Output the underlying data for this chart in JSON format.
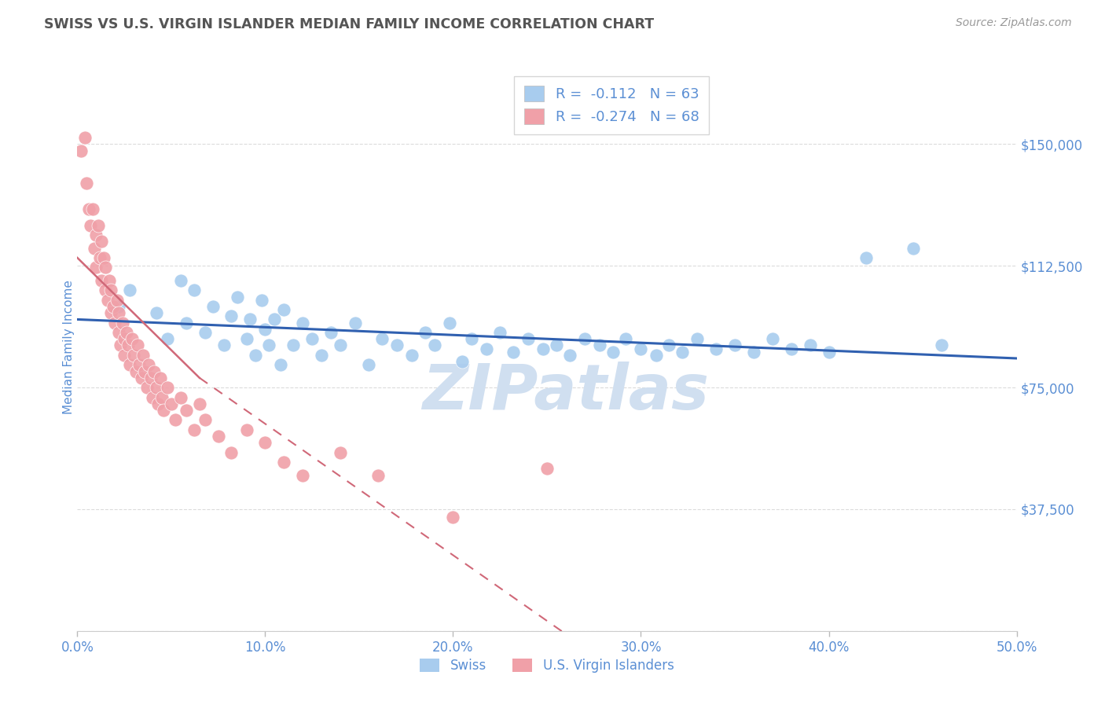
{
  "title": "SWISS VS U.S. VIRGIN ISLANDER MEDIAN FAMILY INCOME CORRELATION CHART",
  "source": "Source: ZipAtlas.com",
  "ylabel": "Median Family Income",
  "xlim": [
    0.0,
    0.5
  ],
  "ylim": [
    0,
    175000
  ],
  "yticks": [
    0,
    37500,
    75000,
    112500,
    150000
  ],
  "ytick_labels": [
    "",
    "$37,500",
    "$75,000",
    "$112,500",
    "$150,000"
  ],
  "xticks": [
    0.0,
    0.1,
    0.2,
    0.3,
    0.4,
    0.5
  ],
  "xtick_labels": [
    "0.0%",
    "10.0%",
    "20.0%",
    "30.0%",
    "40.0%",
    "50.0%"
  ],
  "legend_r_swiss": "-0.112",
  "legend_n_swiss": 63,
  "legend_r_usvi": "-0.274",
  "legend_n_usvi": 68,
  "blue_color": "#A8CCEE",
  "pink_color": "#F0A0A8",
  "trend_blue": "#3060B0",
  "trend_pink": "#D06878",
  "axis_color": "#5B8FD4",
  "grid_color": "#CCCCCC",
  "title_color": "#555555",
  "source_color": "#999999",
  "watermark_color": "#D0DFF0",
  "swiss_x": [
    0.022,
    0.028,
    0.042,
    0.048,
    0.055,
    0.058,
    0.062,
    0.068,
    0.072,
    0.078,
    0.082,
    0.085,
    0.09,
    0.092,
    0.095,
    0.098,
    0.1,
    0.102,
    0.105,
    0.108,
    0.11,
    0.115,
    0.12,
    0.125,
    0.13,
    0.135,
    0.14,
    0.148,
    0.155,
    0.162,
    0.17,
    0.178,
    0.185,
    0.19,
    0.198,
    0.205,
    0.21,
    0.218,
    0.225,
    0.232,
    0.24,
    0.248,
    0.255,
    0.262,
    0.27,
    0.278,
    0.285,
    0.292,
    0.3,
    0.308,
    0.315,
    0.322,
    0.33,
    0.34,
    0.35,
    0.36,
    0.37,
    0.38,
    0.39,
    0.4,
    0.42,
    0.445,
    0.46
  ],
  "swiss_y": [
    100000,
    105000,
    98000,
    90000,
    108000,
    95000,
    105000,
    92000,
    100000,
    88000,
    97000,
    103000,
    90000,
    96000,
    85000,
    102000,
    93000,
    88000,
    96000,
    82000,
    99000,
    88000,
    95000,
    90000,
    85000,
    92000,
    88000,
    95000,
    82000,
    90000,
    88000,
    85000,
    92000,
    88000,
    95000,
    83000,
    90000,
    87000,
    92000,
    86000,
    90000,
    87000,
    88000,
    85000,
    90000,
    88000,
    86000,
    90000,
    87000,
    85000,
    88000,
    86000,
    90000,
    87000,
    88000,
    86000,
    90000,
    87000,
    88000,
    86000,
    115000,
    118000,
    88000
  ],
  "usvi_x": [
    0.002,
    0.004,
    0.005,
    0.006,
    0.007,
    0.008,
    0.009,
    0.01,
    0.01,
    0.011,
    0.012,
    0.013,
    0.013,
    0.014,
    0.015,
    0.015,
    0.016,
    0.017,
    0.018,
    0.018,
    0.019,
    0.02,
    0.021,
    0.022,
    0.022,
    0.023,
    0.024,
    0.025,
    0.025,
    0.026,
    0.027,
    0.028,
    0.029,
    0.03,
    0.031,
    0.032,
    0.033,
    0.034,
    0.035,
    0.036,
    0.037,
    0.038,
    0.039,
    0.04,
    0.041,
    0.042,
    0.043,
    0.044,
    0.045,
    0.046,
    0.048,
    0.05,
    0.052,
    0.055,
    0.058,
    0.062,
    0.065,
    0.068,
    0.075,
    0.082,
    0.09,
    0.1,
    0.11,
    0.12,
    0.14,
    0.16,
    0.2,
    0.25
  ],
  "usvi_y": [
    148000,
    152000,
    138000,
    130000,
    125000,
    130000,
    118000,
    122000,
    112000,
    125000,
    115000,
    120000,
    108000,
    115000,
    105000,
    112000,
    102000,
    108000,
    98000,
    105000,
    100000,
    95000,
    102000,
    92000,
    98000,
    88000,
    95000,
    90000,
    85000,
    92000,
    88000,
    82000,
    90000,
    85000,
    80000,
    88000,
    82000,
    78000,
    85000,
    80000,
    75000,
    82000,
    78000,
    72000,
    80000,
    75000,
    70000,
    78000,
    72000,
    68000,
    75000,
    70000,
    65000,
    72000,
    68000,
    62000,
    70000,
    65000,
    60000,
    55000,
    62000,
    58000,
    52000,
    48000,
    55000,
    48000,
    35000,
    50000
  ]
}
